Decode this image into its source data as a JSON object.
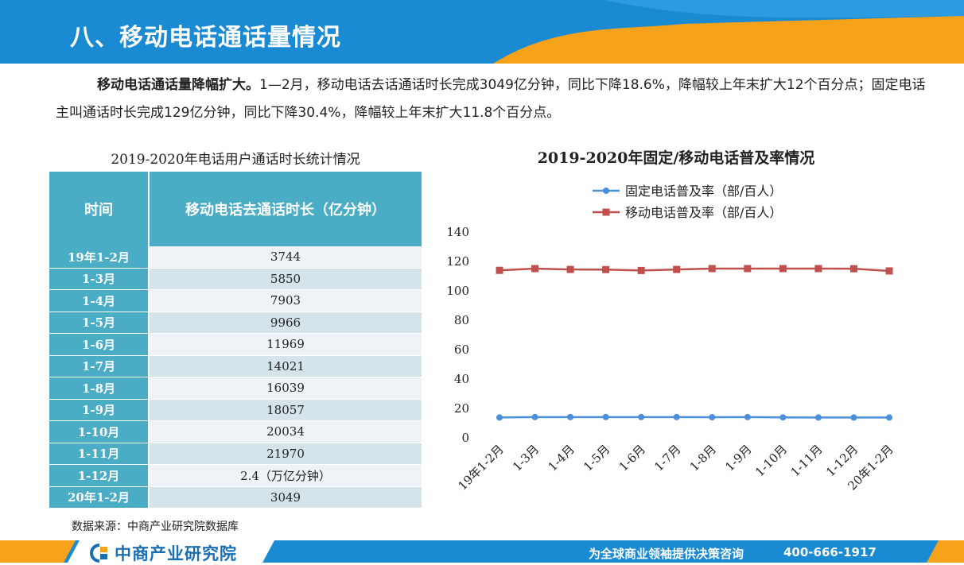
{
  "page": {
    "title": "八、移动电话通话量情况",
    "intro_bold": "移动电话通话量降幅扩大。",
    "intro_text": "1—2月，移动电话去话通话时长完成3049亿分钟，同比下降18.6%，降幅较上年末扩大12个百分点；固定电话主叫通话时长完成129亿分钟，同比下降30.4%，降幅较上年末扩大11.8个百分点。",
    "source": "数据来源：中商产业研究院数据库"
  },
  "table": {
    "title": "2019-2020年电话用户通话时长统计情况",
    "headers": [
      "时间",
      "移动电话去通话时长（亿分钟）"
    ],
    "rows": [
      [
        "19年1-2月",
        "3744"
      ],
      [
        "1-3月",
        "5850"
      ],
      [
        "1-4月",
        "7903"
      ],
      [
        "1-5月",
        "9966"
      ],
      [
        "1-6月",
        "11969"
      ],
      [
        "1-7月",
        "14021"
      ],
      [
        "1-8月",
        "16039"
      ],
      [
        "1-9月",
        "18057"
      ],
      [
        "1-10月",
        "20034"
      ],
      [
        "1-11月",
        "21970"
      ],
      [
        "1-12月",
        "2.4（万亿分钟）"
      ],
      [
        "20年1-2月",
        "3049"
      ]
    ]
  },
  "chart_data": {
    "type": "line",
    "title": "2019-2020年固定/移动电话普及率情况",
    "categories": [
      "19年1-2月",
      "1-3月",
      "1-4月",
      "1-5月",
      "1-6月",
      "1-7月",
      "1-8月",
      "1-9月",
      "1-10月",
      "1-11月",
      "1-12月",
      "20年1-2月"
    ],
    "series": [
      {
        "name": "固定电话普及率（部/百人）",
        "color": "#4a8fdb",
        "marker": "circle",
        "values": [
          13.3,
          13.6,
          13.6,
          13.6,
          13.6,
          13.6,
          13.5,
          13.6,
          13.4,
          13.3,
          13.3,
          13.3
        ]
      },
      {
        "name": "移动电话普及率（部/百人）",
        "color": "#c0504d",
        "marker": "square",
        "values": [
          113.4,
          114.6,
          114.0,
          113.9,
          113.3,
          114.0,
          114.6,
          114.6,
          114.6,
          114.6,
          114.5,
          113.0
        ]
      }
    ],
    "ylim": [
      0,
      140
    ],
    "yticks": [
      0,
      20,
      40,
      60,
      80,
      100,
      120,
      140
    ],
    "legend": "top-center",
    "grid": false
  },
  "footer": {
    "brand": "中商产业研究院",
    "slogan": "为全球商业领袖提供决策咨询",
    "phone": "400-666-1917"
  },
  "colors": {
    "header_blue": "#1a8ad3",
    "header_orange": "#f7a21b",
    "table_header": "#4bacc6"
  }
}
